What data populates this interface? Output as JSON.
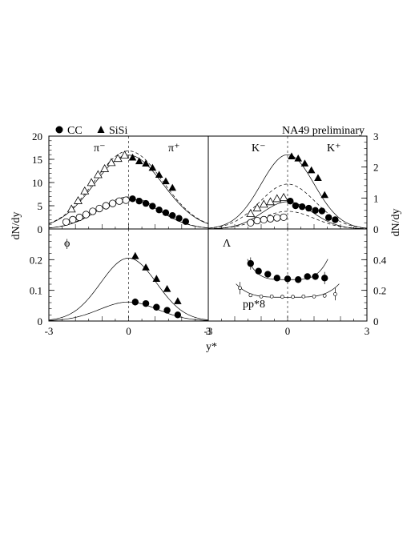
{
  "legend": {
    "cc_label": "CC",
    "sisi_label": "SiSi"
  },
  "annotation": "NA49 preliminary",
  "axes": {
    "left_ylabel": "dN/dy",
    "right_ylabel": "dN/dy",
    "xlabel": "y*"
  },
  "chart_data": [
    {
      "panel": "pion",
      "type": "scatter",
      "particle_labels": [
        "π⁻",
        "π⁺"
      ],
      "xlim": [
        -3,
        3
      ],
      "ylim": [
        0,
        20
      ],
      "yticks": [
        0,
        5,
        10,
        15,
        20
      ],
      "xticks": [],
      "series": [
        {
          "name": "SiSi π⁻ (reflected)",
          "marker": "open-triangle",
          "x": [
            -2.15,
            -1.9,
            -1.65,
            -1.4,
            -1.15,
            -0.9,
            -0.65,
            -0.4,
            -0.15
          ],
          "y": [
            4.3,
            6.1,
            8.2,
            10.0,
            11.7,
            13.0,
            14.3,
            15.2,
            15.9
          ]
        },
        {
          "name": "SiSi π⁺",
          "marker": "filled-triangle",
          "x": [
            0.15,
            0.4,
            0.65,
            0.9,
            1.15,
            1.4,
            1.65
          ],
          "y": [
            15.4,
            14.6,
            14.1,
            13.2,
            11.7,
            10.3,
            8.9
          ]
        },
        {
          "name": "CC π⁻ (reflected)",
          "marker": "open-circle",
          "x": [
            -2.35,
            -2.1,
            -1.85,
            -1.6,
            -1.35,
            -1.1,
            -0.85,
            -0.6,
            -0.35,
            -0.1
          ],
          "y": [
            1.5,
            2.0,
            2.5,
            3.1,
            3.8,
            4.4,
            5.0,
            5.5,
            6.0,
            6.2
          ]
        },
        {
          "name": "CC π⁺",
          "marker": "filled-circle",
          "x": [
            0.15,
            0.4,
            0.65,
            0.9,
            1.15,
            1.4,
            1.65,
            1.9,
            2.15
          ],
          "y": [
            6.5,
            6.0,
            5.5,
            4.9,
            4.1,
            3.5,
            2.9,
            2.3,
            1.6
          ]
        }
      ],
      "curves": [
        {
          "style": "solid",
          "amplitude": 15.9,
          "sigma": 1.3
        },
        {
          "style": "dashed",
          "amplitude": 16.8,
          "sigma": 1.3
        },
        {
          "style": "solid",
          "amplitude": 6.5,
          "sigma": 1.15
        },
        {
          "style": "dashed",
          "amplitude": 6.9,
          "sigma": 1.15
        }
      ]
    },
    {
      "panel": "kaon",
      "type": "scatter",
      "particle_labels": [
        "K⁻",
        "K⁺"
      ],
      "xlim": [
        -3,
        3
      ],
      "ylim": [
        0,
        3
      ],
      "yticks": [
        0,
        1,
        2,
        3
      ],
      "xticks": [],
      "series": [
        {
          "name": "SiSi K⁻ (reflected)",
          "marker": "open-triangle",
          "x": [
            -1.4,
            -1.15,
            -0.9,
            -0.65,
            -0.4,
            -0.15
          ],
          "y": [
            0.5,
            0.68,
            0.8,
            0.88,
            0.98,
            1.02
          ]
        },
        {
          "name": "SiSi K⁺",
          "marker": "filled-triangle",
          "x": [
            0.15,
            0.4,
            0.65,
            0.9,
            1.15,
            1.4
          ],
          "y": [
            2.35,
            2.28,
            2.12,
            1.9,
            1.65,
            1.1
          ]
        },
        {
          "name": "CC K⁻ (reflected)",
          "marker": "open-circle",
          "x": [
            -1.4,
            -1.15,
            -0.9,
            -0.65,
            -0.4,
            -0.15
          ],
          "y": [
            0.2,
            0.27,
            0.3,
            0.33,
            0.36,
            0.38
          ]
        },
        {
          "name": "CC K⁺",
          "marker": "filled-circle",
          "x": [
            0.1,
            0.3,
            0.55,
            0.8,
            1.05,
            1.3,
            1.55,
            1.8
          ],
          "y": [
            0.9,
            0.75,
            0.72,
            0.67,
            0.6,
            0.58,
            0.37,
            0.3
          ]
        }
      ],
      "curves": [
        {
          "style": "solid",
          "amplitude": 2.4,
          "sigma": 1.0
        },
        {
          "style": "dashed",
          "amplitude": 1.45,
          "sigma": 1.05
        },
        {
          "style": "solid",
          "amplitude": 0.88,
          "sigma": 0.95
        },
        {
          "style": "dashed",
          "amplitude": 0.57,
          "sigma": 1.0
        }
      ]
    },
    {
      "panel": "phi",
      "type": "scatter",
      "particle_labels": [
        "ϕ"
      ],
      "xlim": [
        -3,
        3
      ],
      "ylim": [
        0,
        0.3
      ],
      "yticks": [
        0,
        0.1,
        0.2
      ],
      "xticks": [
        -3,
        0,
        3
      ],
      "series": [
        {
          "name": "SiSi ϕ",
          "marker": "filled-triangle",
          "x": [
            0.25,
            0.65,
            1.05,
            1.45,
            1.85
          ],
          "y": [
            0.212,
            0.175,
            0.138,
            0.105,
            0.065
          ]
        },
        {
          "name": "CC ϕ",
          "marker": "filled-circle",
          "x": [
            0.25,
            0.65,
            1.05,
            1.45,
            1.85
          ],
          "y": [
            0.062,
            0.057,
            0.045,
            0.035,
            0.02
          ]
        }
      ],
      "curves": [
        {
          "style": "solid",
          "amplitude": 0.205,
          "sigma": 1.05
        },
        {
          "style": "solid",
          "amplitude": 0.062,
          "sigma": 1.1
        }
      ]
    },
    {
      "panel": "lambda",
      "type": "scatter",
      "particle_labels": [
        "Λ"
      ],
      "extra_label": "pp*8",
      "xlim": [
        -3,
        3
      ],
      "ylim": [
        0,
        0.6
      ],
      "yticks": [
        0,
        0.2,
        0.4
      ],
      "xticks": [
        -3,
        0,
        3
      ],
      "series": [
        {
          "name": "CC Λ",
          "marker": "filled-circle",
          "x": [
            -1.4,
            -1.1,
            -0.75,
            -0.4,
            0.0,
            0.4,
            0.75,
            1.05,
            1.4
          ],
          "y": [
            0.375,
            0.325,
            0.305,
            0.28,
            0.275,
            0.27,
            0.29,
            0.29,
            0.28
          ]
        },
        {
          "name": "pp*8",
          "marker": "small-open-circle",
          "x": [
            -1.8,
            -1.4,
            -1.0,
            -0.6,
            -0.2,
            0.2,
            0.6,
            1.0,
            1.4,
            1.8
          ],
          "y": [
            0.215,
            0.168,
            0.16,
            0.16,
            0.158,
            0.158,
            0.16,
            0.16,
            0.165,
            0.175
          ]
        }
      ],
      "curves": [
        {
          "style": "solid",
          "kind": "u",
          "x_range": [
            -1.52,
            1.52
          ],
          "base": 0.27,
          "coef": 0.025,
          "power": 4
        },
        {
          "style": "solid",
          "kind": "u",
          "x_range": [
            -1.95,
            1.95
          ],
          "base": 0.155,
          "coef": 0.006,
          "power": 4
        }
      ]
    }
  ]
}
